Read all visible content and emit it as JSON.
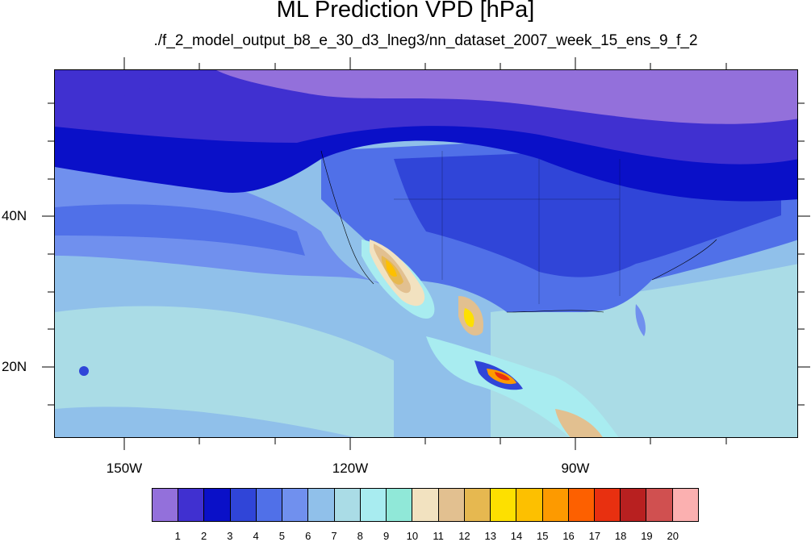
{
  "title": "ML Prediction VPD [hPa]",
  "subtitle": "./f_2_model_output_b8_e_30_d3_lneg3/nn_dataset_2007_week_15_ens_9_f_2",
  "axes": {
    "lat_labels": [
      "40N",
      "20N"
    ],
    "lon_labels": [
      "150W",
      "120W",
      "90W"
    ]
  },
  "legend": {
    "labels": [
      "1",
      "2",
      "3",
      "4",
      "5",
      "6",
      "7",
      "8",
      "9",
      "10",
      "11",
      "12",
      "13",
      "14",
      "15",
      "16",
      "17",
      "18",
      "19",
      "20"
    ],
    "colors": [
      "#9370db",
      "#4030d0",
      "#0a10c8",
      "#3045d8",
      "#5070e8",
      "#7090ee",
      "#90c0ea",
      "#aadce6",
      "#a8ecf0",
      "#90e8d8",
      "#f2e2c0",
      "#e2c090",
      "#e6b850",
      "#fde000",
      "#fdc000",
      "#fd9a00",
      "#fd6000",
      "#e83010",
      "#b82020",
      "#d05050",
      "#fbb0b0"
    ]
  }
}
